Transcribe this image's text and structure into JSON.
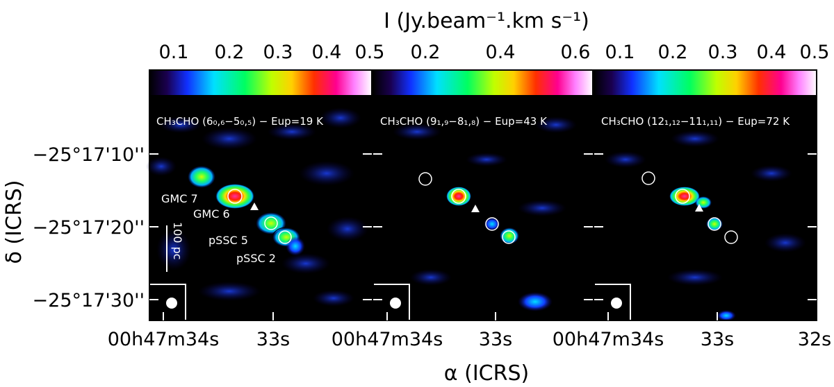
{
  "figure": {
    "colorbar_title": "I (Jy.beam⁻¹.km s⁻¹)",
    "x_axis_title": "α (ICRS)",
    "y_axis_title": "δ (ICRS)",
    "y_ticks": [
      "−25°17'10''",
      "−25°17'20''",
      "−25°17'30''"
    ],
    "colors": {
      "background": "#000000",
      "contour": "#000000",
      "marker": "#ffffff"
    }
  },
  "panels": [
    {
      "label": "CH₃CHO (6₀,₆−5₀,₅) − Eup=19 K",
      "colorbar_ticks": [
        "0.1",
        "0.2",
        "0.3",
        "0.4",
        "0.5"
      ],
      "x_ticks": [
        "00h47m34s",
        "33s"
      ],
      "sources": [
        "GMC 7",
        "GMC 6",
        "pSSC 5",
        "pSSC 2"
      ],
      "scale_bar": "100 pc"
    },
    {
      "label": "CH₃CHO (9₁,₉−8₁,₈) − Eup=43 K",
      "colorbar_ticks": [
        "0.2",
        "0.4",
        "0.6"
      ],
      "x_ticks": [
        "00h47m34s",
        "33s"
      ]
    },
    {
      "label": "CH₃CHO (12₁,₁₂−11₁,₁₁) − Eup=72 K",
      "colorbar_ticks": [
        "0.1",
        "0.2",
        "0.3",
        "0.4",
        "0.5"
      ],
      "x_ticks": [
        "00h47m34s",
        "33s",
        "32s"
      ]
    }
  ]
}
